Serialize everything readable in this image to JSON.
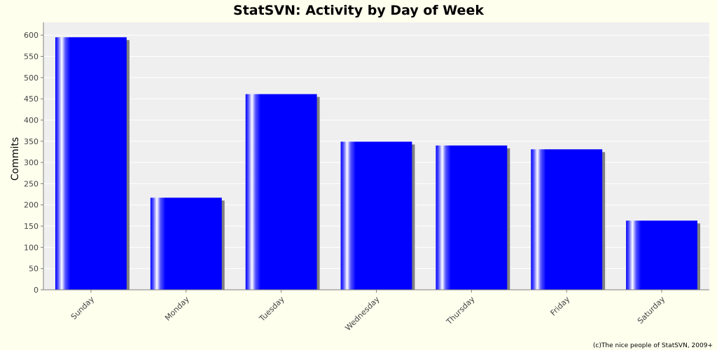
{
  "chart_data": {
    "type": "bar",
    "title": "StatSVN: Activity by Day of Week",
    "xlabel": "",
    "ylabel": "Commits",
    "categories": [
      "Sunday",
      "Monday",
      "Tuesday",
      "Wednesday",
      "Thursday",
      "Friday",
      "Saturday"
    ],
    "values": [
      595,
      217,
      461,
      349,
      340,
      331,
      163
    ],
    "ylim": [
      0,
      630
    ],
    "yticks": [
      0,
      50,
      100,
      150,
      200,
      250,
      300,
      350,
      400,
      450,
      500,
      550,
      600
    ],
    "grid": true,
    "legend": "none"
  },
  "credit": "(c)The nice people of StatSVN, 2009+",
  "colors": {
    "background": "#ffffee",
    "plot_background": "#efeff0",
    "bar": "#0000ff",
    "bar_highlight": "#ffffff",
    "bar_shadow": "#808080",
    "gridline": "#ffffff",
    "axis": "#808080"
  }
}
